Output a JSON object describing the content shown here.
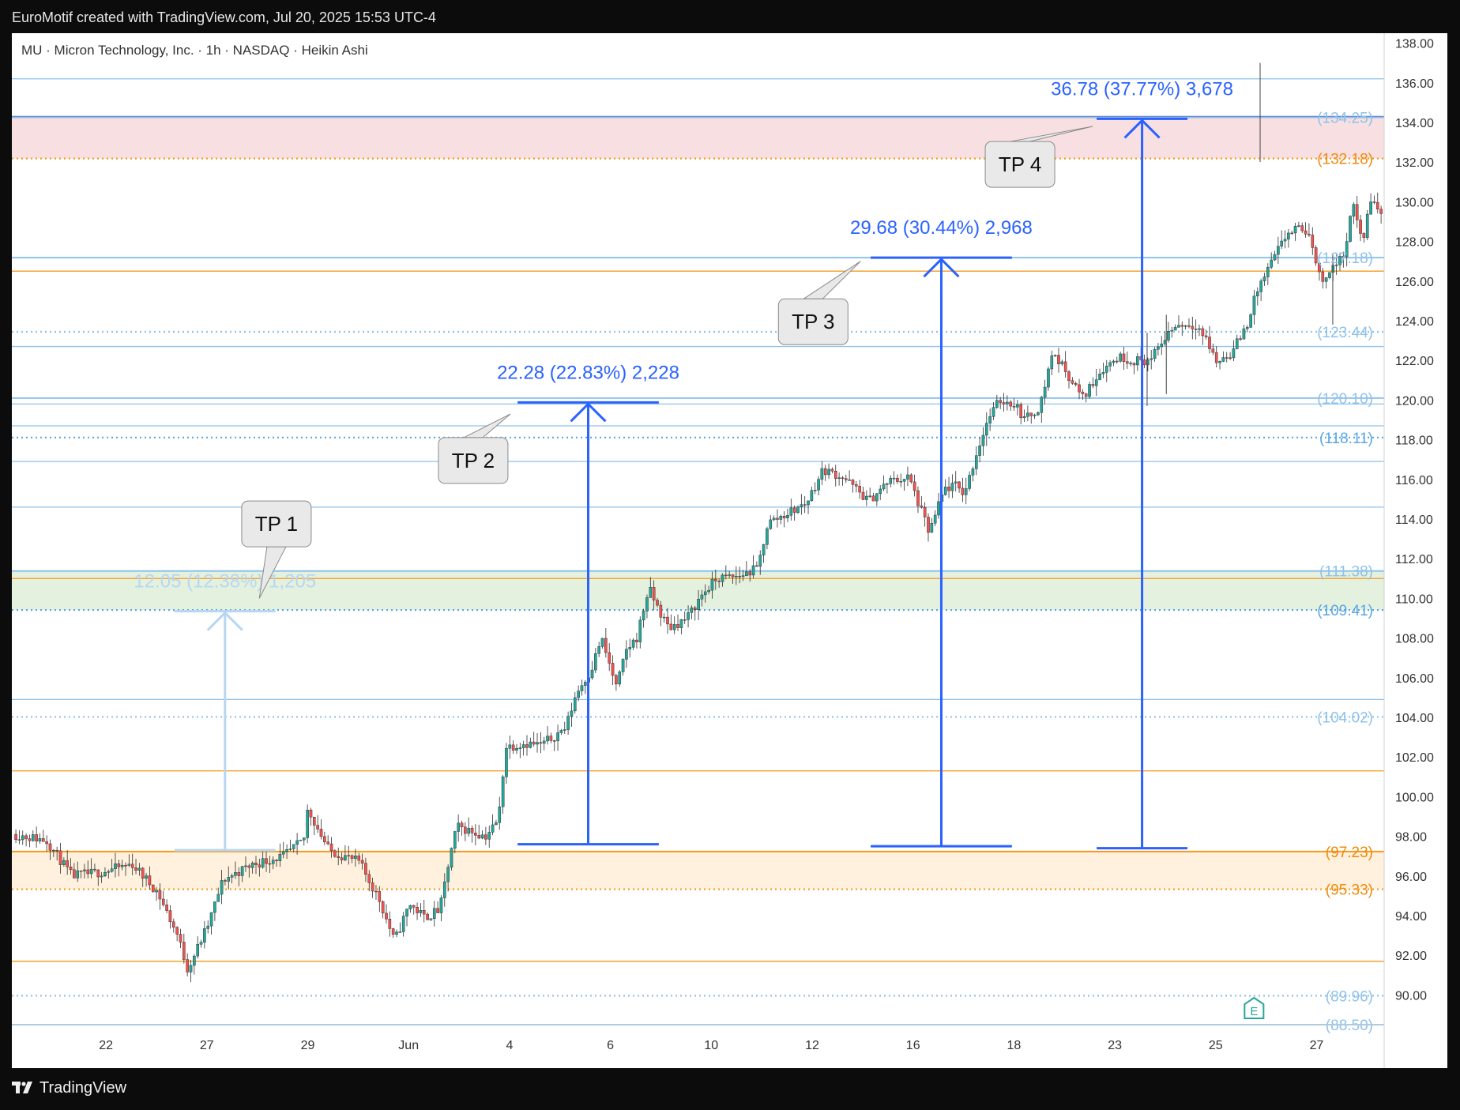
{
  "header": {
    "caption": "EuroMotif created with TradingView.com, Jul 20, 2025 15:53 UTC-4"
  },
  "footer": {
    "brand": "TradingView"
  },
  "chart_data": {
    "type": "candlestick",
    "title": "MU · Micron Technology, Inc. · 1h · NASDAQ · Heikin Ashi",
    "symbol": "MU",
    "company": "Micron Technology, Inc.",
    "interval": "1h",
    "exchange": "NASDAQ",
    "style": "Heikin Ashi",
    "ylim": [
      88.5,
      138.5
    ],
    "price_ticks": [
      "138.00",
      "136.00",
      "134.00",
      "132.00",
      "130.00",
      "128.00",
      "126.00",
      "124.00",
      "122.00",
      "120.00",
      "118.00",
      "116.00",
      "114.00",
      "112.00",
      "110.00",
      "108.00",
      "106.00",
      "104.00",
      "102.00",
      "100.00",
      "98.00",
      "96.00",
      "94.00",
      "92.00",
      "90.00"
    ],
    "date_ticks": [
      {
        "label": "22",
        "x": 0.04
      },
      {
        "label": "27",
        "x": 1.04
      },
      {
        "label": "29",
        "x": 2.04
      },
      {
        "label": "Jun",
        "x": 3.04
      },
      {
        "label": "4",
        "x": 4.04
      },
      {
        "label": "6",
        "x": 5.04
      },
      {
        "label": "10",
        "x": 6.04
      },
      {
        "label": "12",
        "x": 7.04
      },
      {
        "label": "16",
        "x": 8.04
      },
      {
        "label": "18",
        "x": 9.04
      },
      {
        "label": "23",
        "x": 10.04
      },
      {
        "label": "25",
        "x": 11.04
      },
      {
        "label": "27",
        "x": 12.04
      }
    ],
    "xlim": [
      -0.87,
      12.68
    ],
    "price_path": [
      [
        -0.87,
        98.1
      ],
      [
        -0.55,
        97.8
      ],
      [
        -0.3,
        96.0
      ],
      [
        0.0,
        96.2
      ],
      [
        0.3,
        96.6
      ],
      [
        0.55,
        95.2
      ],
      [
        0.75,
        93.0
      ],
      [
        0.85,
        91.3
      ],
      [
        1.05,
        93.5
      ],
      [
        1.2,
        95.8
      ],
      [
        1.5,
        96.6
      ],
      [
        1.8,
        97.0
      ],
      [
        2.0,
        97.8
      ],
      [
        2.04,
        99.4
      ],
      [
        2.25,
        97.3
      ],
      [
        2.55,
        96.7
      ],
      [
        2.75,
        94.8
      ],
      [
        2.9,
        92.7
      ],
      [
        3.05,
        94.6
      ],
      [
        3.2,
        93.9
      ],
      [
        3.35,
        94.3
      ],
      [
        3.45,
        97.0
      ],
      [
        3.52,
        98.5
      ],
      [
        3.8,
        98.0
      ],
      [
        3.93,
        98.8
      ],
      [
        4.0,
        102.5
      ],
      [
        4.2,
        102.7
      ],
      [
        4.35,
        102.6
      ],
      [
        4.5,
        103.1
      ],
      [
        4.6,
        103.5
      ],
      [
        4.7,
        105.2
      ],
      [
        4.85,
        106.4
      ],
      [
        4.95,
        108.0
      ],
      [
        5.1,
        105.5
      ],
      [
        5.2,
        107.4
      ],
      [
        5.3,
        108.0
      ],
      [
        5.42,
        110.5
      ],
      [
        5.55,
        109.1
      ],
      [
        5.62,
        108.5
      ],
      [
        5.8,
        109.0
      ],
      [
        5.95,
        110.2
      ],
      [
        6.1,
        111.0
      ],
      [
        6.3,
        111.1
      ],
      [
        6.5,
        111.5
      ],
      [
        6.6,
        113.8
      ],
      [
        6.8,
        114.3
      ],
      [
        6.98,
        114.8
      ],
      [
        7.15,
        116.5
      ],
      [
        7.35,
        116.1
      ],
      [
        7.6,
        114.9
      ],
      [
        7.8,
        115.9
      ],
      [
        8.0,
        116.1
      ],
      [
        8.12,
        114.4
      ],
      [
        8.2,
        113.3
      ],
      [
        8.35,
        115.5
      ],
      [
        8.45,
        115.7
      ],
      [
        8.55,
        115.3
      ],
      [
        8.68,
        117.5
      ],
      [
        8.78,
        119.0
      ],
      [
        8.9,
        120.0
      ],
      [
        9.05,
        119.8
      ],
      [
        9.15,
        119.0
      ],
      [
        9.3,
        119.7
      ],
      [
        9.42,
        122.4
      ],
      [
        9.55,
        121.5
      ],
      [
        9.72,
        120.1
      ],
      [
        9.9,
        121.5
      ],
      [
        10.08,
        122.2
      ],
      [
        10.2,
        122.0
      ],
      [
        10.4,
        122.0
      ],
      [
        10.55,
        123.3
      ],
      [
        10.65,
        123.8
      ],
      [
        10.85,
        123.8
      ],
      [
        10.95,
        123.0
      ],
      [
        11.05,
        121.9
      ],
      [
        11.2,
        122.4
      ],
      [
        11.35,
        123.8
      ],
      [
        11.45,
        125.5
      ],
      [
        11.6,
        127.0
      ],
      [
        11.75,
        128.4
      ],
      [
        11.9,
        128.7
      ],
      [
        12.0,
        127.8
      ],
      [
        12.08,
        126.0
      ],
      [
        12.2,
        126.7
      ],
      [
        12.3,
        127.2
      ],
      [
        12.4,
        129.8
      ],
      [
        12.5,
        128.0
      ],
      [
        12.58,
        130.2
      ],
      [
        12.68,
        129.3
      ]
    ],
    "levels": [
      {
        "price": 134.25,
        "label": "(134.25)",
        "color": "#8fc2ea",
        "style": "solid"
      },
      {
        "price": 132.18,
        "label": "(132.18)",
        "color": "#f59a1c",
        "style": "dotted"
      },
      {
        "price": 127.18,
        "label": "(127.18)",
        "color": "#8fc2ea",
        "style": "solid"
      },
      {
        "price": 123.44,
        "label": "(123.44)",
        "color": "#8fc2ea",
        "style": "dotted"
      },
      {
        "price": 120.1,
        "label": "(120.10)",
        "color": "#8fc2ea",
        "style": "solid"
      },
      {
        "price": 118.11,
        "label": "(118.11)",
        "color": "#5aa6e6",
        "style": "dotted"
      },
      {
        "price": 111.38,
        "label": "(111.38)",
        "color": "#8fc2ea",
        "style": "solid"
      },
      {
        "price": 109.41,
        "label": "(109.41)",
        "color": "#5aa6e6",
        "style": "dotted"
      },
      {
        "price": 104.02,
        "label": "(104.02)",
        "color": "#8fc2ea",
        "style": "dotted"
      },
      {
        "price": 97.23,
        "label": "(97.23)",
        "color": "#f59a1c",
        "style": "solid"
      },
      {
        "price": 95.33,
        "label": "(95.33)",
        "color": "#f59a1c",
        "style": "dotted"
      },
      {
        "price": 89.96,
        "label": "(89.96)",
        "color": "#8fc2ea",
        "style": "dotted"
      },
      {
        "price": 88.5,
        "label": "(88.50)",
        "color": "#8fc2ea",
        "style": "solid"
      }
    ],
    "extra_lines": [
      {
        "price": 136.2,
        "color": "#8fc2ea"
      },
      {
        "price": 134.3,
        "color": "#5a6abd"
      },
      {
        "price": 126.5,
        "color": "#f59a1c"
      },
      {
        "price": 122.7,
        "color": "#8fc2ea"
      },
      {
        "price": 119.8,
        "color": "#8fc2ea"
      },
      {
        "price": 118.7,
        "color": "#8fc2ea"
      },
      {
        "price": 116.9,
        "color": "#8fc2ea"
      },
      {
        "price": 114.6,
        "color": "#8fc2ea"
      },
      {
        "price": 111.0,
        "color": "#f59a1c"
      },
      {
        "price": 104.9,
        "color": "#8fc2ea"
      },
      {
        "price": 101.3,
        "color": "#f59a1c"
      },
      {
        "price": 91.7,
        "color": "#f59a1c"
      }
    ],
    "zones": [
      {
        "from": 132.18,
        "to": 134.25,
        "color": "#f8e0e2"
      },
      {
        "from": 109.41,
        "to": 111.38,
        "color": "#e5f1df"
      },
      {
        "from": 95.33,
        "to": 97.23,
        "color": "#fff1dd"
      }
    ],
    "measures": [
      {
        "id": "tp1",
        "label": "TP 1",
        "text": "12.05 (12.38%) 1,205",
        "x_from": 0.72,
        "x_to": 1.72,
        "price_from": 97.3,
        "price_to": 109.35,
        "color": "#b7d6f2"
      },
      {
        "id": "tp2",
        "label": "TP 2",
        "text": "22.28 (22.83%) 2,228",
        "x_from": 4.12,
        "x_to": 5.52,
        "price_from": 97.6,
        "price_to": 119.88,
        "color": "#2962ff"
      },
      {
        "id": "tp3",
        "label": "TP 3",
        "text": "29.68 (30.44%) 2,968",
        "x_from": 7.62,
        "x_to": 9.02,
        "price_from": 97.5,
        "price_to": 127.18,
        "color": "#2962ff"
      },
      {
        "id": "tp4",
        "label": "TP 4",
        "text": "36.78 (37.77%) 3,678",
        "x_from": 9.86,
        "x_to": 10.76,
        "price_from": 97.4,
        "price_to": 134.18,
        "color": "#2962ff"
      }
    ],
    "earnings_marker": {
      "label": "E",
      "x": 11.42
    },
    "colors": {
      "up": "#26a69a",
      "down": "#ef5350",
      "axis_text": "#333333",
      "measure": "#2962ff"
    }
  }
}
